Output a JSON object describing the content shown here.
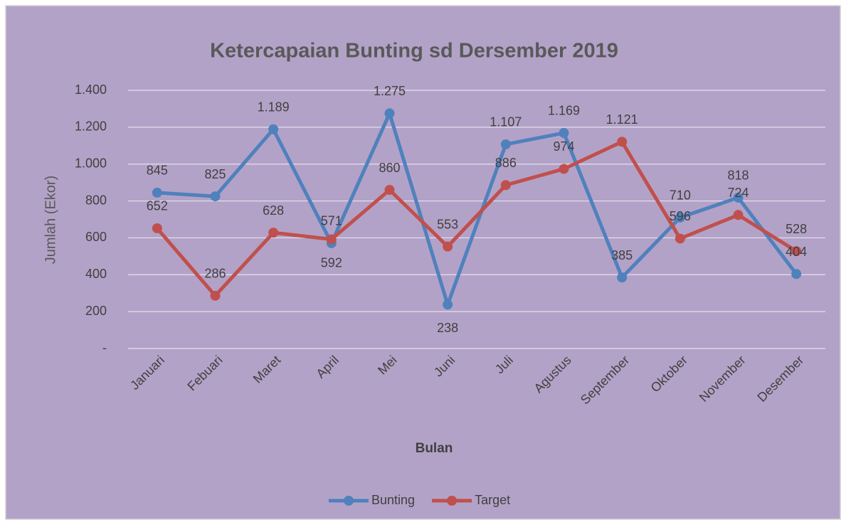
{
  "chart_data": {
    "type": "line",
    "title": "Ketercapaian Bunting sd Dersember 2019",
    "x_label": "Bulan",
    "y_label": "Jumlah (Ekor)",
    "categories": [
      "Januari",
      "Febuari",
      "Maret",
      "April",
      "Mei",
      "Juni",
      "Juli",
      "Agustus",
      "September",
      "Oktober",
      "November",
      "Desember"
    ],
    "series": [
      {
        "name": "Bunting",
        "color": "#4f81bd",
        "values": [
          845,
          825,
          1189,
          571,
          1275,
          238,
          1107,
          1169,
          385,
          710,
          818,
          404
        ],
        "value_labels": [
          "845",
          "825",
          "1.189",
          "571",
          "1.275",
          "238",
          "1.107",
          "1.169",
          "385",
          "710",
          "818",
          "404"
        ]
      },
      {
        "name": "Target",
        "color": "#c0504d",
        "values": [
          652,
          286,
          628,
          592,
          860,
          553,
          886,
          974,
          1121,
          596,
          724,
          528
        ],
        "value_labels": [
          "652",
          "286",
          "628",
          "592",
          "860",
          "553",
          "886",
          "974",
          "1.121",
          "596",
          "724",
          "528"
        ]
      }
    ],
    "ylim": [
      0,
      1400
    ],
    "yticks": [
      {
        "value": 0,
        "label": "-"
      },
      200,
      400,
      600,
      800,
      {
        "value": 1000,
        "label": "1.000"
      },
      {
        "value": 1200,
        "label": "1.200"
      },
      {
        "value": 1400,
        "label": "1.400"
      }
    ],
    "grid": true,
    "legend": "bottom"
  }
}
